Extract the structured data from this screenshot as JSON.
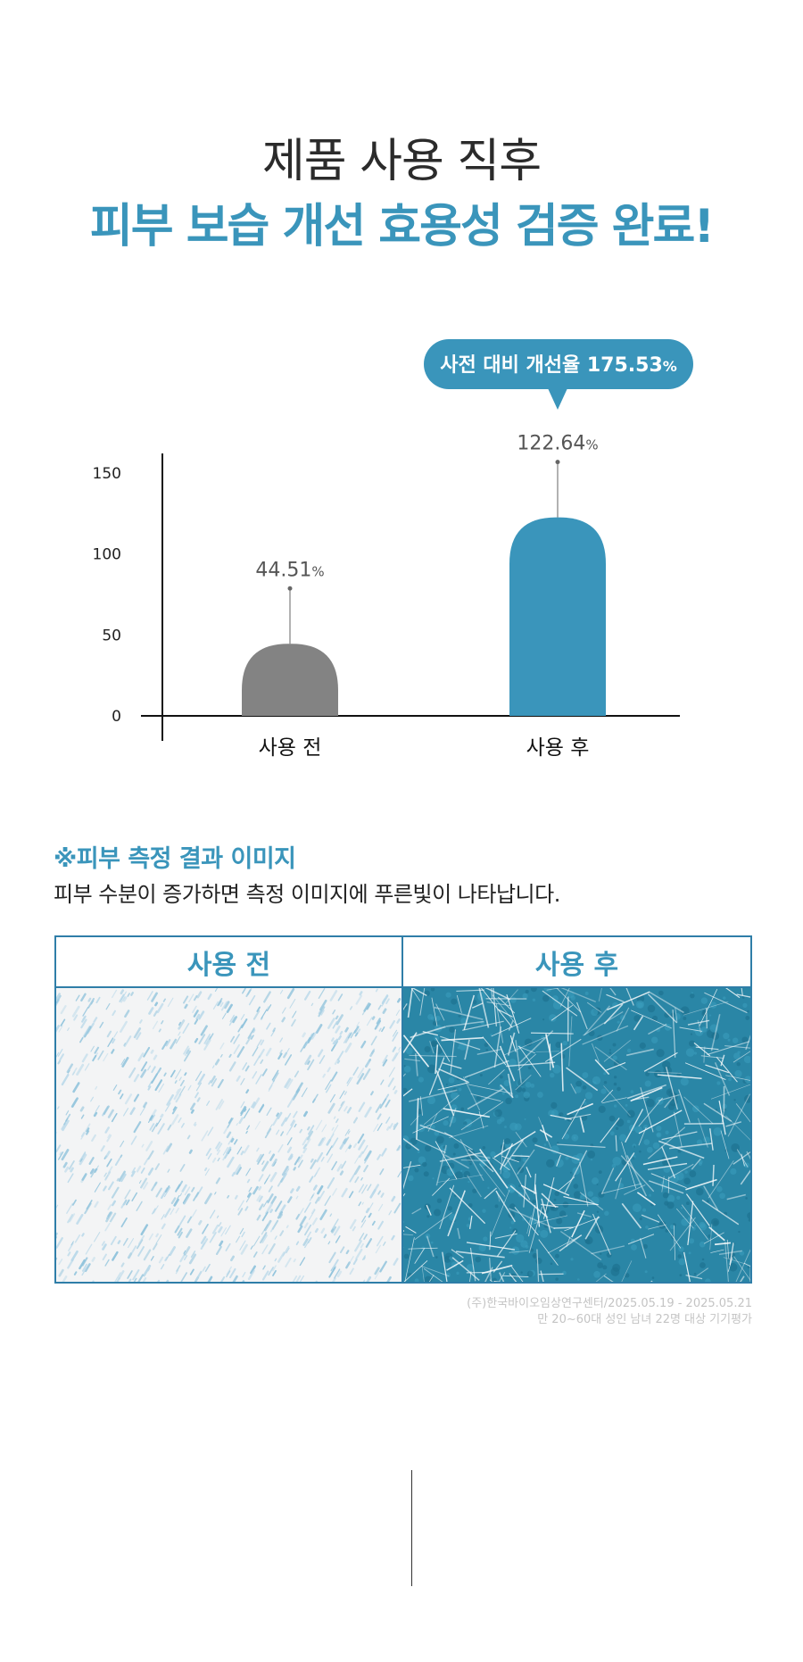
{
  "headline": {
    "line1": "제품 사용 직후",
    "line2": "피부 보습 개선 효용성 검증 완료!"
  },
  "colors": {
    "accent": "#3a95bb",
    "before_bar": "#838383",
    "after_bar": "#3a95bb",
    "text_dark": "#2b2b2b"
  },
  "chart_data": {
    "type": "bar",
    "categories": [
      "사용 전",
      "사용 후"
    ],
    "values": [
      44.51,
      122.64
    ],
    "value_labels": [
      "44.51",
      "122.64"
    ],
    "value_unit": "%",
    "ylim": [
      0,
      150
    ],
    "yticks": [
      0,
      50,
      100,
      150
    ],
    "callout": {
      "text": "사전 대비 개선율 175.53",
      "unit": "%"
    },
    "grid": false,
    "title": "",
    "xlabel": "",
    "ylabel": ""
  },
  "result_section": {
    "title": "※피부 측정 결과 이미지",
    "description": "피부 수분이 증가하면 측정 이미지에 푸른빛이 나타납니다.",
    "columns": [
      "사용 전",
      "사용 후"
    ]
  },
  "source": {
    "line1": "(주)한국바이오임상연구센터/2025.05.19 - 2025.05.21",
    "line2": "만 20~60대 성인 남녀 22명 대상 기기평가"
  }
}
